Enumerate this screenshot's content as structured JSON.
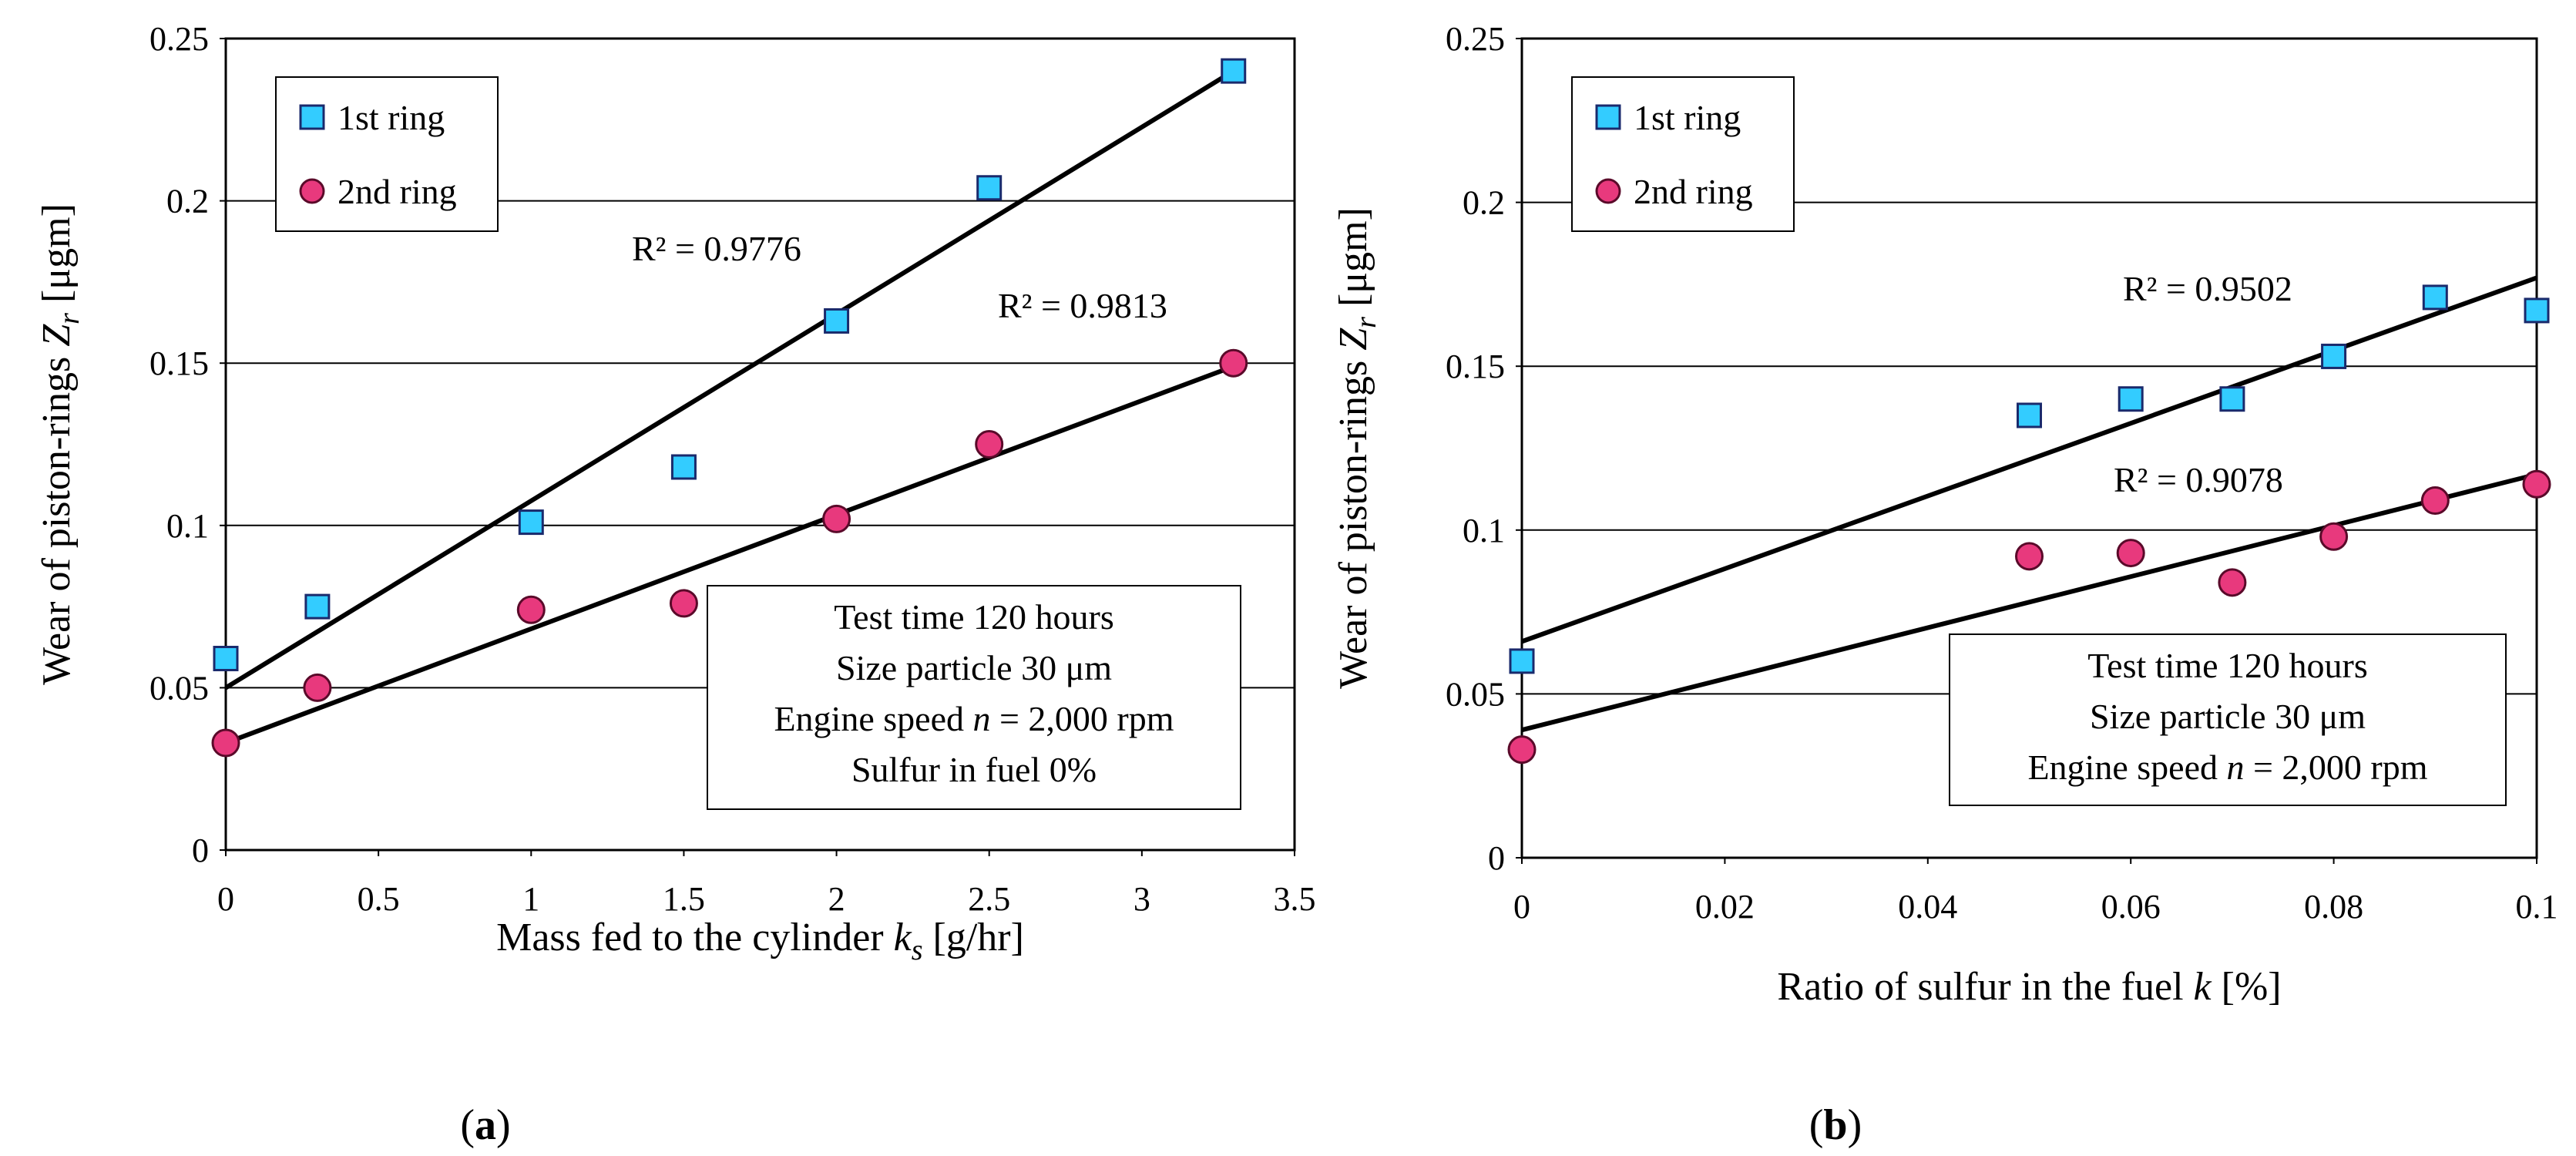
{
  "chart_data": [
    {
      "type": "scatter",
      "panel": "a",
      "xlabel": "Mass fed to the cylinder k_s [g/hr]",
      "xlabel_main": "Mass fed to the cylinder ",
      "xlabel_var": "k",
      "xlabel_sub": "s",
      "xlabel_unit": " [g/hr]",
      "ylabel": "Wear of piston-rings Z_r [μgm]",
      "ylabel_main": "Wear of piston-rings ",
      "ylabel_var": "Z",
      "ylabel_sub": "r",
      "ylabel_unit": " [μgm]",
      "xlim": [
        0,
        3.5
      ],
      "ylim": [
        0,
        0.25
      ],
      "xticks": [
        "0",
        "0.5",
        "1",
        "1.5",
        "2",
        "2.5",
        "3",
        "3.5"
      ],
      "xtick_values": [
        0,
        0.5,
        1,
        1.5,
        2,
        2.5,
        3,
        3.5
      ],
      "yticks": [
        "0",
        "0.05",
        "0.1",
        "0.15",
        "0.2",
        "0.25"
      ],
      "ytick_values": [
        0,
        0.05,
        0.1,
        0.15,
        0.2,
        0.25
      ],
      "grid": "horizontal",
      "legend_position": "top-left",
      "series": [
        {
          "name": "1st ring",
          "marker": "square",
          "color": "#33ccff",
          "x": [
            0,
            0.3,
            1,
            1.5,
            2,
            2.5,
            3.3
          ],
          "y": [
            0.059,
            0.075,
            0.101,
            0.118,
            0.163,
            0.204,
            0.24
          ],
          "trend": {
            "x": [
              0,
              3.3
            ],
            "y": [
              0.05,
              0.24
            ]
          },
          "r2": "R² = 0.9776"
        },
        {
          "name": "2nd ring",
          "marker": "circle",
          "color": "#e8397d",
          "x": [
            0,
            0.3,
            1,
            1.5,
            2,
            2.5,
            3.3
          ],
          "y": [
            0.033,
            0.05,
            0.074,
            0.076,
            0.102,
            0.125,
            0.15
          ],
          "trend": {
            "x": [
              0,
              3.3
            ],
            "y": [
              0.033,
              0.149
            ]
          },
          "r2": "R² = 0.9813"
        }
      ],
      "note": [
        "Test time 120 hours",
        "Size particle 30 μm",
        "Engine speed n = 2,000 rpm",
        "Sulfur in fuel 0%"
      ],
      "panel_label": "a"
    },
    {
      "type": "scatter",
      "panel": "b",
      "xlabel": "Ratio of sulfur in the fuel k [%]",
      "xlabel_main": "Ratio of sulfur in the fuel ",
      "xlabel_var": "k",
      "xlabel_sub": "",
      "xlabel_unit": " [%]",
      "ylabel": "Wear of piston-rings Z_r [μgm]",
      "ylabel_main": "Wear of piston-rings ",
      "ylabel_var": "Z",
      "ylabel_sub": "r",
      "ylabel_unit": " [μgm]",
      "xlim": [
        0,
        0.1
      ],
      "ylim": [
        0,
        0.25
      ],
      "xticks": [
        "0",
        "0.02",
        "0.04",
        "0.06",
        "0.08",
        "0.1"
      ],
      "xtick_values": [
        0,
        0.02,
        0.04,
        0.06,
        0.08,
        0.1
      ],
      "yticks": [
        "0",
        "0.05",
        "0.1",
        "0.15",
        "0.2",
        "0.25"
      ],
      "ytick_values": [
        0,
        0.05,
        0.1,
        0.15,
        0.2,
        0.25
      ],
      "grid": "horizontal",
      "legend_position": "top-left",
      "series": [
        {
          "name": "1st ring",
          "marker": "square",
          "color": "#33ccff",
          "x": [
            0,
            0.05,
            0.06,
            0.07,
            0.08,
            0.09,
            0.1
          ],
          "y": [
            0.06,
            0.135,
            0.14,
            0.14,
            0.153,
            0.171,
            0.167
          ],
          "trend": {
            "x": [
              0,
              0.1
            ],
            "y": [
              0.066,
              0.177
            ]
          },
          "r2": "R² = 0.9502"
        },
        {
          "name": "2nd ring",
          "marker": "circle",
          "color": "#e8397d",
          "x": [
            0,
            0.05,
            0.06,
            0.07,
            0.08,
            0.09,
            0.1
          ],
          "y": [
            0.033,
            0.092,
            0.093,
            0.084,
            0.098,
            0.109,
            0.114
          ],
          "trend": {
            "x": [
              0,
              0.1
            ],
            "y": [
              0.039,
              0.117
            ]
          },
          "r2": "R² = 0.9078"
        }
      ],
      "note": [
        "Test time 120 hours",
        "Size particle 30 μm",
        "Engine speed n = 2,000 rpm"
      ],
      "panel_label": "b"
    }
  ],
  "panel_labels": {
    "a": "(a)",
    "b": "(b)"
  },
  "labels": {
    "open": "(",
    "close": ")"
  }
}
